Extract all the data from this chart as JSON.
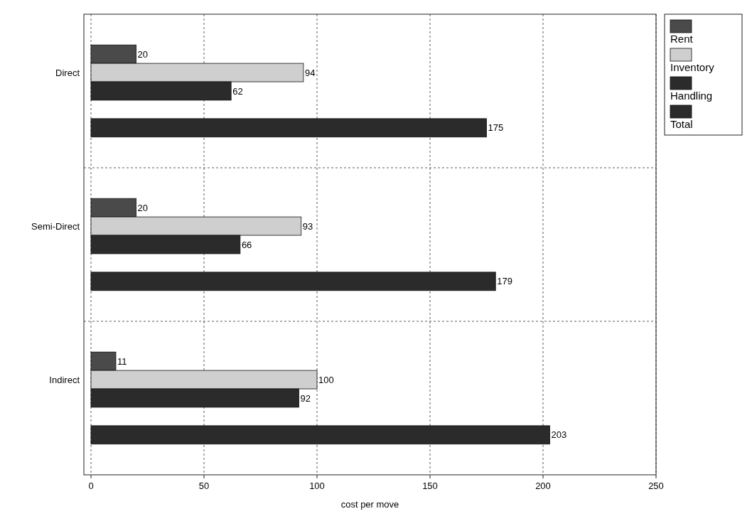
{
  "chart_data": {
    "type": "bar",
    "orientation": "horizontal",
    "categories": [
      "Direct",
      "Semi-Direct",
      "Indirect"
    ],
    "series": [
      {
        "name": "Rent",
        "color": "#4a4a4a",
        "values": [
          20,
          20,
          11
        ]
      },
      {
        "name": "Inventory",
        "color": "#cfcfcf",
        "values": [
          94,
          93,
          100
        ]
      },
      {
        "name": "Handling",
        "color": "#2b2b2b",
        "values": [
          62,
          66,
          92
        ]
      },
      {
        "name": "Total",
        "color": "#2b2b2b",
        "values": [
          175,
          179,
          203
        ]
      }
    ],
    "xlim": [
      0,
      250
    ],
    "xticks": [
      0,
      50,
      100,
      150,
      200,
      250
    ],
    "xlabel": "cost per move",
    "grid": true,
    "legend": "top right",
    "data_labels": true
  }
}
